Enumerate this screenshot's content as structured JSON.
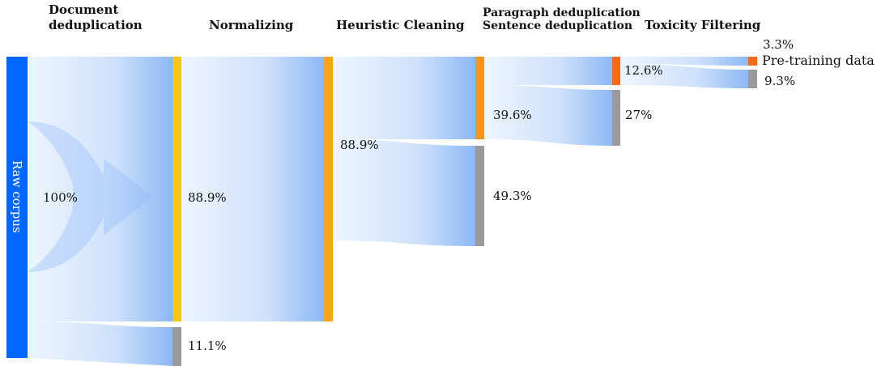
{
  "stages": [
    "Document deduplication",
    "Normalizing",
    "Heuristic Cleaning",
    "Paragraph deduplication",
    "Sentence deduplication",
    "Toxicity Filtering"
  ],
  "source_label": "Raw corpus",
  "output_label": "Pre-training data",
  "values": {
    "raw": "100%",
    "after_dedup": "88.9%",
    "dedup_removed": "11.1%",
    "after_normalizing": "88.9%",
    "after_heuristic": "39.6%",
    "heuristic_removed": "49.3%",
    "after_paragraph_sentence_dedup": "12.6%",
    "paragraph_sentence_removed": "27%",
    "pretraining_data": "3.3%",
    "toxicity_removed": "9.3%"
  },
  "colors": {
    "source": "#0066ff",
    "kept": "#f5c518",
    "heuristic_kept": "#f7941d",
    "final": "#f26b1d",
    "removed": "#9a9a9a",
    "flow_light": "#eef5ff",
    "flow_dark": "#8cb8f5"
  }
}
